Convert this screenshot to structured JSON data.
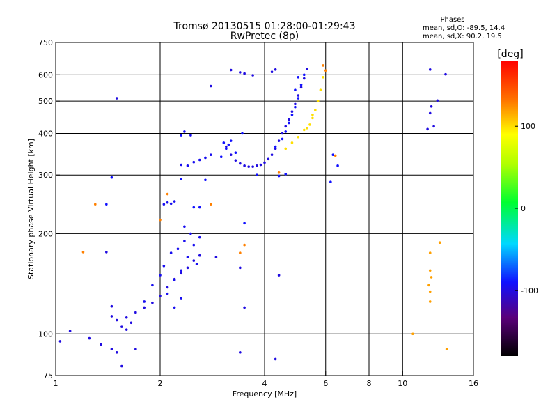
{
  "chart_data": {
    "type": "scatter",
    "title": "Tromsø 20130515 01:28:00-01:29:43",
    "subtitle": "RwPretec (8p)",
    "stats": {
      "heading": "Phases",
      "line_o": "mean, sd,O: -89.5, 14.4",
      "line_x": "mean, sd,X:  90.2, 19.5"
    },
    "xlabel": "Frequency [MHz]",
    "ylabel": "Stationary phase Virtual Height [km]",
    "xscale": "log2",
    "yscale": "log",
    "xlim": [
      1,
      16
    ],
    "ylim": [
      75,
      750
    ],
    "xticks": [
      1,
      2,
      4,
      6,
      8,
      10,
      16
    ],
    "xtick_labels": [
      "1",
      "2",
      "4",
      "6",
      "8",
      "10",
      "16"
    ],
    "yticks": [
      75,
      100,
      200,
      300,
      400,
      500,
      600,
      750
    ],
    "ytick_labels": [
      "75",
      "100",
      "200",
      "300",
      "400",
      "500",
      "600",
      "750"
    ],
    "grid_x": [
      2,
      4,
      6,
      8,
      10
    ],
    "grid_y": [
      100,
      200,
      300,
      400,
      500,
      600
    ],
    "colorbar": {
      "label": "[deg]",
      "range": [
        -180,
        180
      ],
      "ticks": [
        -100,
        0,
        100
      ],
      "tick_labels": [
        "-100",
        "0",
        "100"
      ]
    },
    "traces": [
      {
        "name": "lower-blue-trace",
        "f": [
          1.45,
          1.5,
          1.6,
          1.7,
          1.8,
          1.9,
          2.0,
          2.1,
          2.2,
          2.3,
          2.4,
          2.5,
          2.6
        ],
        "h": [
          113,
          110,
          112,
          116,
          120,
          124,
          130,
          138,
          146,
          152,
          158,
          166,
          172
        ],
        "phase": -100
      },
      {
        "name": "lower-blue-cloud",
        "f": [
          1.8,
          1.9,
          2.0,
          2.05,
          2.1,
          2.15,
          2.2,
          2.25,
          2.3,
          2.35,
          2.4,
          2.45,
          2.5,
          2.55,
          2.6,
          2.2,
          2.3,
          2.35
        ],
        "h": [
          125,
          140,
          150,
          160,
          132,
          175,
          145,
          180,
          155,
          190,
          170,
          200,
          185,
          162,
          195,
          120,
          128,
          210
        ],
        "phase": -95
      },
      {
        "name": "mid-blue-cluster",
        "f": [
          2.05,
          2.1,
          2.15,
          2.2,
          2.3,
          2.4,
          2.5,
          2.6,
          2.7,
          2.8,
          2.45,
          2.35
        ],
        "h": [
          245,
          248,
          246,
          250,
          322,
          320,
          328,
          333,
          338,
          345,
          395,
          405
        ],
        "phase": -95
      },
      {
        "name": "upper-blue-arc",
        "f": [
          3.1,
          3.2,
          3.3,
          3.4,
          3.5,
          3.6,
          3.7,
          3.8,
          3.9,
          4.0,
          4.1,
          4.2,
          4.3,
          4.4,
          4.5,
          4.6,
          4.7,
          4.8,
          4.9,
          5.0,
          5.1,
          5.2,
          5.3
        ],
        "h": [
          365,
          345,
          332,
          325,
          320,
          318,
          318,
          320,
          322,
          327,
          335,
          345,
          360,
          380,
          400,
          420,
          440,
          465,
          490,
          520,
          550,
          585,
          625
        ],
        "phase": -100
      },
      {
        "name": "upper-blue-cloud",
        "f": [
          3.05,
          3.1,
          3.15,
          3.2,
          3.3,
          4.3,
          4.5,
          4.6,
          4.7,
          4.8,
          4.9,
          5.0,
          5.1,
          5.2,
          5.0,
          4.9
        ],
        "h": [
          375,
          360,
          370,
          380,
          350,
          365,
          385,
          405,
          430,
          455,
          480,
          510,
          560,
          600,
          590,
          540
        ],
        "phase": -90
      },
      {
        "name": "x-mode-trace",
        "f": [
          4.6,
          4.8,
          5.0,
          5.2,
          5.4,
          5.5,
          5.6,
          5.7,
          5.8,
          5.9,
          5.3,
          5.5
        ],
        "h": [
          360,
          375,
          390,
          410,
          425,
          445,
          470,
          500,
          540,
          590,
          415,
          455
        ],
        "phase": 100
      },
      {
        "name": "scatter-low",
        "f": [
          1.03,
          1.1,
          1.25,
          1.35,
          1.45,
          1.5,
          1.55,
          1.6,
          1.7,
          1.4,
          1.45,
          1.65,
          1.55,
          2.9,
          3.4,
          3.5,
          3.4,
          4.3,
          4.4
        ],
        "h": [
          95,
          102,
          97,
          93,
          90,
          88,
          105,
          103,
          90,
          176,
          121,
          108,
          80,
          170,
          158,
          120,
          88,
          84,
          150
        ],
        "phase": -100
      },
      {
        "name": "scatter-mid",
        "f": [
          1.45,
          1.4,
          2.3,
          2.5,
          2.7,
          2.3,
          2.6,
          3.0,
          3.5,
          3.45,
          3.8,
          4.4,
          4.6,
          6.2,
          6.3,
          6.5
        ],
        "h": [
          295,
          245,
          292,
          240,
          290,
          395,
          240,
          340,
          215,
          400,
          300,
          298,
          302,
          286,
          345,
          320
        ],
        "phase": -90
      },
      {
        "name": "scatter-top",
        "f": [
          1.5,
          2.8,
          3.2,
          3.5,
          3.7,
          4.2,
          4.3,
          3.4,
          12.0,
          12.6,
          13.3,
          12.0,
          12.1,
          11.8,
          12.3
        ],
        "h": [
          510,
          555,
          620,
          605,
          598,
          612,
          622,
          610,
          622,
          502,
          602,
          460,
          482,
          412,
          420
        ],
        "phase": -100
      },
      {
        "name": "scatter-right-column",
        "f": [
          12.0,
          12.0,
          12.1,
          11.9,
          12.0,
          12.0,
          12.8,
          13.4,
          10.7
        ],
        "h": [
          175,
          155,
          148,
          140,
          134,
          125,
          188,
          90,
          100
        ],
        "phase": 120
      },
      {
        "name": "scatter-warm",
        "f": [
          1.3,
          1.2,
          2.0,
          2.1,
          2.8,
          3.4,
          3.5,
          4.4,
          5.9,
          6.0,
          6.4
        ],
        "h": [
          245,
          176,
          220,
          263,
          245,
          175,
          185,
          305,
          640,
          618,
          343
        ],
        "phase": 130
      }
    ]
  }
}
